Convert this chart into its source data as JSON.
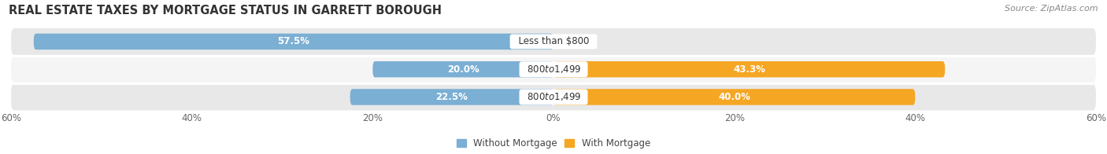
{
  "title": "REAL ESTATE TAXES BY MORTGAGE STATUS IN GARRETT BOROUGH",
  "source": "Source: ZipAtlas.com",
  "rows": [
    {
      "label": "Less than $800",
      "without": 57.5,
      "with": 0.0
    },
    {
      "label": "$800 to $1,499",
      "without": 20.0,
      "with": 43.3
    },
    {
      "label": "$800 to $1,499",
      "without": 22.5,
      "with": 40.0
    }
  ],
  "xlim": 60.0,
  "color_without": "#7bafd4",
  "color_with": "#f5a623",
  "color_without_light": "#b8d4ea",
  "color_with_light": "#fad99a",
  "bar_height": 0.58,
  "background_row_odd": "#e8e8e8",
  "background_row_even": "#f5f5f5",
  "background_fig": "#ffffff",
  "legend_without": "Without Mortgage",
  "legend_with": "With Mortgage",
  "title_fontsize": 10.5,
  "label_fontsize": 8.5,
  "tick_fontsize": 8.5,
  "source_fontsize": 8
}
